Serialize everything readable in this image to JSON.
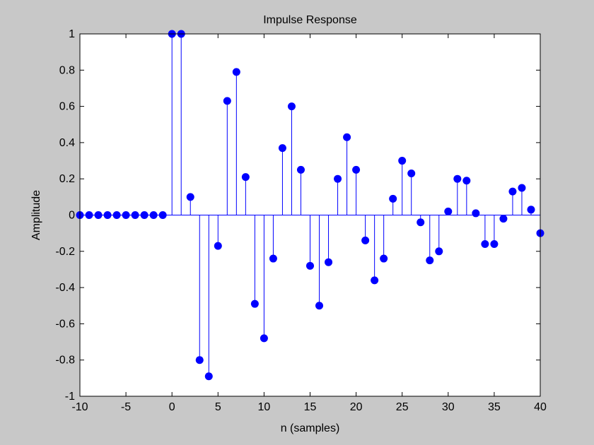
{
  "colors": {
    "figure_bg": "#c8c8c8",
    "axes_bg": "#ffffff",
    "stem": "#0000ff",
    "baseline": "#0000ff",
    "axes_frame": "#000000"
  },
  "chart_data": {
    "type": "stem",
    "title": "Impulse Response",
    "xlabel": "n (samples)",
    "ylabel": "Amplitude",
    "xlim": [
      -10,
      40
    ],
    "ylim": [
      -1,
      1
    ],
    "xticks": [
      -10,
      -5,
      0,
      5,
      10,
      15,
      20,
      25,
      30,
      35,
      40
    ],
    "yticks": [
      -1,
      -0.8,
      -0.6,
      -0.4,
      -0.2,
      0,
      0.2,
      0.4,
      0.6,
      0.8,
      1
    ],
    "xtick_labels": [
      "-10",
      "-5",
      "0",
      "5",
      "10",
      "15",
      "20",
      "25",
      "30",
      "35",
      "40"
    ],
    "ytick_labels": [
      "-1",
      "-0.8",
      "-0.6",
      "-0.4",
      "-0.2",
      "0",
      "0.2",
      "0.4",
      "0.6",
      "0.8",
      "1"
    ],
    "grid": false,
    "marker": "filled-circle",
    "x": [
      -10,
      -9,
      -8,
      -7,
      -6,
      -5,
      -4,
      -3,
      -2,
      -1,
      0,
      1,
      2,
      3,
      4,
      5,
      6,
      7,
      8,
      9,
      10,
      11,
      12,
      13,
      14,
      15,
      16,
      17,
      18,
      19,
      20,
      21,
      22,
      23,
      24,
      25,
      26,
      27,
      28,
      29,
      30,
      31,
      32,
      33,
      34,
      35,
      36,
      37,
      38,
      39,
      40
    ],
    "values": [
      0,
      0,
      0,
      0,
      0,
      0,
      0,
      0,
      0,
      0,
      1,
      1,
      0.1,
      -0.8,
      -0.89,
      -0.17,
      0.63,
      0.79,
      0.21,
      -0.49,
      -0.68,
      -0.24,
      0.37,
      0.6,
      0.25,
      -0.28,
      -0.5,
      -0.26,
      0.2,
      0.43,
      0.25,
      -0.14,
      -0.36,
      -0.24,
      0.09,
      0.3,
      0.23,
      -0.04,
      -0.25,
      -0.2,
      0.02,
      0.2,
      0.19,
      0.01,
      -0.16,
      -0.16,
      -0.02,
      0.13,
      0.15,
      0.03,
      -0.1
    ]
  }
}
